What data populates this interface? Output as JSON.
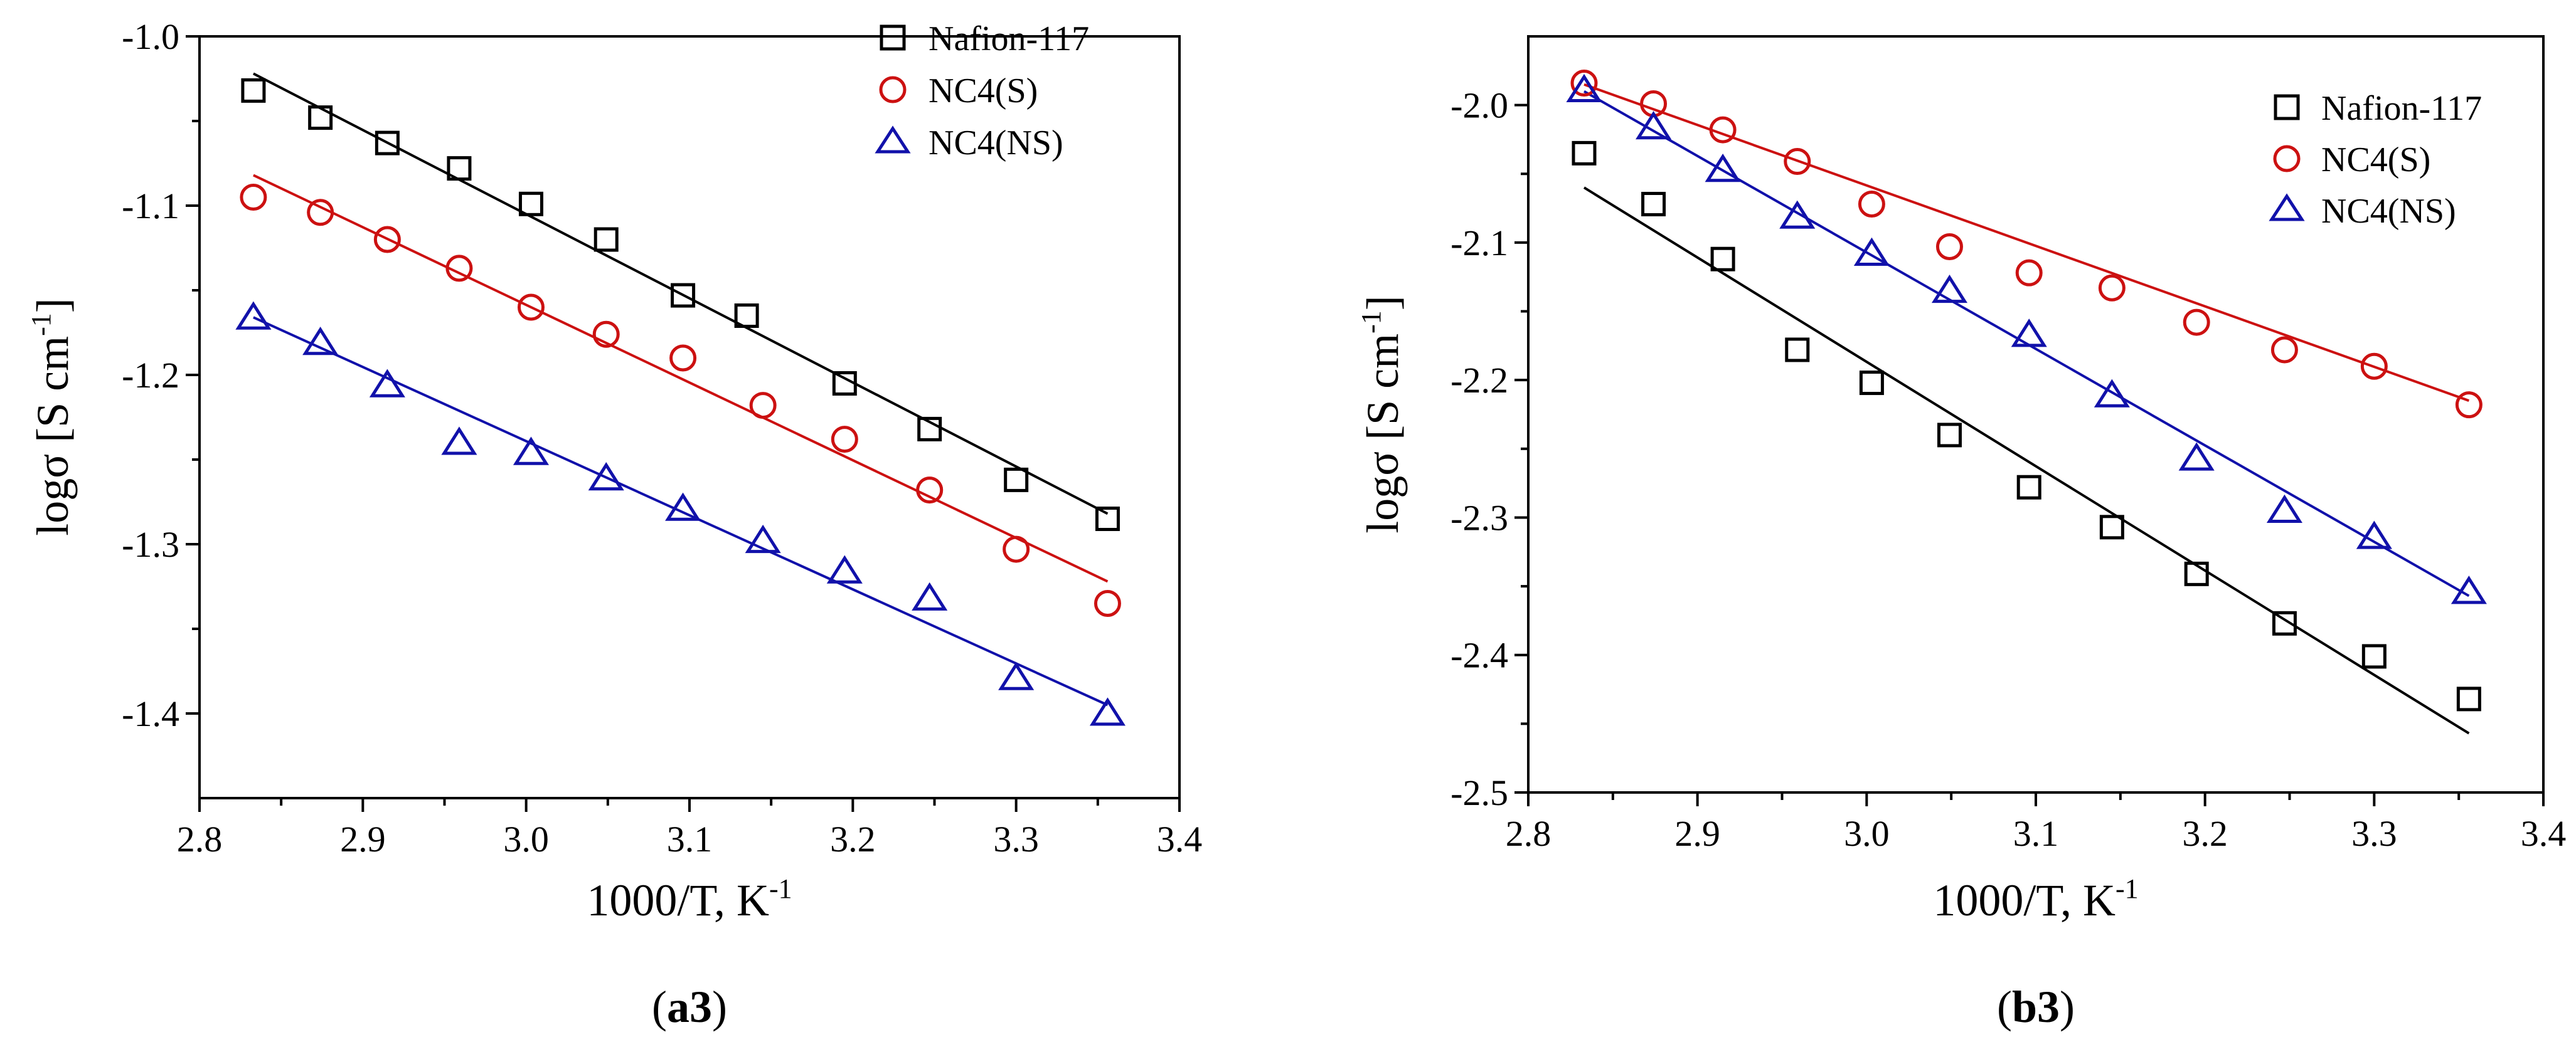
{
  "chart_data": [
    {
      "type": "scatter",
      "panel_label": {
        "open": "(",
        "bold": "a3",
        "close": ")"
      },
      "xlabel": "1000/T, K",
      "xlabel_sup": "-1",
      "ylabel": "logσ [S cm",
      "ylabel_sup": "-1",
      "ylabel_close": "]",
      "xlim": [
        2.8,
        3.4
      ],
      "ylim": [
        -1.45,
        -1.0
      ],
      "xticks": [
        "2.8",
        "2.9",
        "3.0",
        "3.1",
        "3.2",
        "3.3",
        "3.4"
      ],
      "yticks": [
        "-1.4",
        "-1.3",
        "-1.2",
        "-1.1",
        "-1.0"
      ],
      "legend_position": "top-right",
      "series": [
        {
          "name": "Nafion-117",
          "marker": "square",
          "color": "#000000",
          "x": [
            2.833,
            2.874,
            2.915,
            2.959,
            3.003,
            3.049,
            3.096,
            3.135,
            3.195,
            3.247,
            3.3,
            3.356
          ],
          "y": [
            -1.032,
            -1.048,
            -1.063,
            -1.078,
            -1.099,
            -1.12,
            -1.153,
            -1.165,
            -1.205,
            -1.232,
            -1.262,
            -1.285
          ],
          "fit": {
            "x": [
              2.833,
              3.356
            ],
            "y": [
              -1.022,
              -1.282
            ]
          }
        },
        {
          "name": "NC4(S)",
          "marker": "circle",
          "color": "#cc1111",
          "x": [
            2.833,
            2.874,
            2.915,
            2.959,
            3.003,
            3.049,
            3.096,
            3.145,
            3.195,
            3.247,
            3.3,
            3.356
          ],
          "y": [
            -1.095,
            -1.104,
            -1.12,
            -1.137,
            -1.16,
            -1.176,
            -1.19,
            -1.218,
            -1.238,
            -1.268,
            -1.303,
            -1.335
          ],
          "fit": {
            "x": [
              2.833,
              3.356
            ],
            "y": [
              -1.082,
              -1.322
            ]
          }
        },
        {
          "name": "NC4(NS)",
          "marker": "triangle",
          "color": "#1111aa",
          "x": [
            2.833,
            2.874,
            2.915,
            2.959,
            3.003,
            3.049,
            3.096,
            3.145,
            3.195,
            3.247,
            3.3,
            3.356
          ],
          "y": [
            -1.166,
            -1.181,
            -1.206,
            -1.24,
            -1.246,
            -1.261,
            -1.279,
            -1.298,
            -1.316,
            -1.332,
            -1.379,
            -1.4
          ],
          "fit": {
            "x": [
              2.833,
              3.356
            ],
            "y": [
              -1.166,
              -1.395
            ]
          }
        }
      ]
    },
    {
      "type": "scatter",
      "panel_label": {
        "open": "(",
        "bold": "b3",
        "close": ")"
      },
      "xlabel": "1000/T, K",
      "xlabel_sup": "-1",
      "ylabel": "logσ [S cm",
      "ylabel_sup": "-1",
      "ylabel_close": "]",
      "xlim": [
        2.8,
        3.4
      ],
      "ylim": [
        -2.5,
        -1.95
      ],
      "xticks": [
        "2.8",
        "2.9",
        "3.0",
        "3.1",
        "3.2",
        "3.3",
        "3.4"
      ],
      "yticks": [
        "-2.5",
        "-2.4",
        "-2.3",
        "-2.2",
        "-2.1",
        "-2.0"
      ],
      "legend_position": "top-right",
      "series": [
        {
          "name": "Nafion-117",
          "marker": "square",
          "color": "#000000",
          "x": [
            2.833,
            2.874,
            2.915,
            2.959,
            3.003,
            3.049,
            3.096,
            3.145,
            3.195,
            3.247,
            3.3,
            3.356
          ],
          "y": [
            -2.035,
            -2.072,
            -2.112,
            -2.178,
            -2.202,
            -2.24,
            -2.278,
            -2.307,
            -2.341,
            -2.377,
            -2.401,
            -2.432
          ],
          "fit": {
            "x": [
              2.833,
              3.356
            ],
            "y": [
              -2.06,
              -2.457
            ]
          }
        },
        {
          "name": "NC4(S)",
          "marker": "circle",
          "color": "#cc1111",
          "x": [
            2.833,
            2.874,
            2.915,
            2.959,
            3.003,
            3.049,
            3.096,
            3.145,
            3.195,
            3.247,
            3.3,
            3.356
          ],
          "y": [
            -1.984,
            -1.999,
            -2.018,
            -2.041,
            -2.072,
            -2.103,
            -2.122,
            -2.133,
            -2.158,
            -2.178,
            -2.19,
            -2.218
          ],
          "fit": {
            "x": [
              2.833,
              3.356
            ],
            "y": [
              -1.985,
              -2.215
            ]
          }
        },
        {
          "name": "NC4(NS)",
          "marker": "triangle",
          "color": "#1111aa",
          "x": [
            2.833,
            2.874,
            2.915,
            2.959,
            3.003,
            3.049,
            3.096,
            3.145,
            3.195,
            3.247,
            3.3,
            3.356
          ],
          "y": [
            -1.989,
            -2.016,
            -2.047,
            -2.081,
            -2.108,
            -2.135,
            -2.167,
            -2.211,
            -2.257,
            -2.295,
            -2.314,
            -2.354
          ],
          "fit": {
            "x": [
              2.833,
              3.356
            ],
            "y": [
              -1.99,
              -2.357
            ]
          }
        }
      ]
    }
  ]
}
